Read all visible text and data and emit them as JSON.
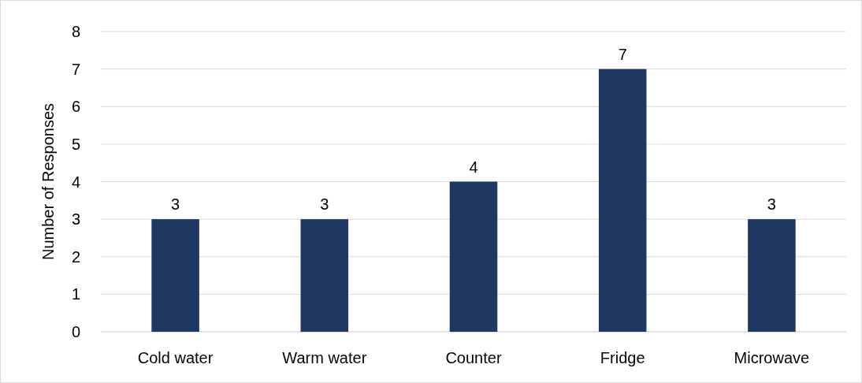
{
  "chart_data": {
    "type": "bar",
    "ylabel": "Number of Responses",
    "categories": [
      "Cold water",
      "Warm water",
      "Counter",
      "Fridge",
      "Microwave"
    ],
    "values": [
      3,
      3,
      4,
      7,
      3
    ],
    "color": "#1f3763",
    "ylim": [
      0,
      8
    ],
    "yticks": [
      0,
      1,
      2,
      3,
      4,
      5,
      6,
      7,
      8
    ],
    "grid": "y",
    "data_labels": true
  }
}
